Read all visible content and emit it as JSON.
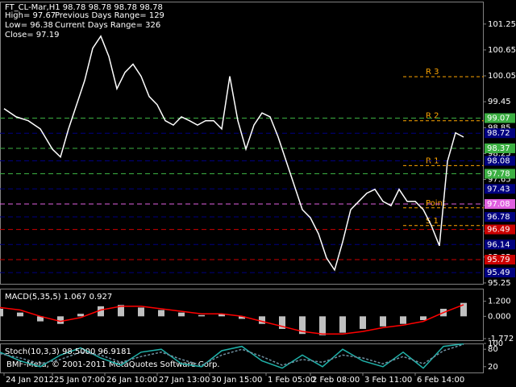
{
  "chart_data": [
    {
      "type": "line",
      "title": "FT_CL-Mar,H1  98.78 98.78 98.78 98.78",
      "info": [
        "High= 97.67",
        "Previous Days Range= 129",
        "Low= 96.38",
        "Current Days Range= 326",
        "Close= 97.19"
      ],
      "x": [
        5,
        20,
        35,
        50,
        65,
        75,
        85,
        95,
        105,
        115,
        125,
        135,
        145,
        155,
        165,
        175,
        185,
        195,
        205,
        215,
        225,
        235,
        245,
        255,
        265,
        275,
        285,
        295,
        305,
        315,
        325,
        335,
        345,
        355,
        365,
        375,
        385,
        395,
        405,
        415,
        425,
        435,
        445,
        455,
        465,
        475,
        485,
        495,
        505,
        515,
        525,
        535,
        545,
        555,
        565,
        575
      ],
      "series": [
        {
          "color": "#ffffff",
          "values": [
            99.29,
            99.1,
            99.01,
            98.82,
            98.35,
            98.17,
            98.82,
            99.38,
            99.94,
            100.69,
            100.97,
            100.5,
            99.75,
            100.13,
            100.32,
            100.04,
            99.57,
            99.38,
            99.01,
            98.91,
            99.1,
            99.01,
            98.91,
            99.01,
            99.01,
            98.82,
            100.04,
            99.01,
            98.35,
            98.91,
            99.19,
            99.1,
            98.63,
            98.07,
            97.51,
            96.95,
            96.76,
            96.39,
            95.83,
            95.55,
            96.2,
            96.95,
            97.14,
            97.33,
            97.42,
            97.14,
            97.04,
            97.42,
            97.14,
            97.14,
            96.95,
            96.58,
            96.11,
            98.07,
            98.73,
            98.63
          ]
        }
      ],
      "levels": [
        {
          "label": "R 3",
          "value": 100.03,
          "color": "#ffa500"
        },
        {
          "label": "R 2",
          "value": 99.01,
          "color": "#ffa500"
        },
        {
          "label": "R 1",
          "value": 97.97,
          "color": "#ffa500"
        },
        {
          "label": "Point",
          "value": 96.99,
          "color": "#ffa500"
        },
        {
          "label": "S 1",
          "value": 96.58,
          "color": "#ffa500"
        }
      ],
      "price_labels": [
        {
          "value": 99.07,
          "color": "#3cb043"
        },
        {
          "value": 98.72,
          "color": "#000080"
        },
        {
          "value": 98.37,
          "color": "#3cb043"
        },
        {
          "value": 98.08,
          "color": "#000080"
        },
        {
          "value": 97.78,
          "color": "#3cb043"
        },
        {
          "value": 97.43,
          "color": "#000080"
        },
        {
          "value": 97.08,
          "color": "#e060e0"
        },
        {
          "value": 96.78,
          "color": "#000080"
        },
        {
          "value": 96.49,
          "color": "#cc0000"
        },
        {
          "value": 96.14,
          "color": "#000080"
        },
        {
          "value": 95.79,
          "color": "#cc0000"
        },
        {
          "value": 95.49,
          "color": "#000080"
        }
      ],
      "xlim": [
        0,
        600
      ],
      "xticks": [
        {
          "value": 5,
          "label": "24 Jan 2012"
        },
        {
          "value": 65,
          "label": "25 Jan 07:00"
        },
        {
          "value": 130,
          "label": "26 Jan 10:00"
        },
        {
          "value": 195,
          "label": "27 Jan 13:00"
        },
        {
          "value": 260,
          "label": "30 Jan 15:00"
        },
        {
          "value": 330,
          "label": "1 Feb 05:00"
        },
        {
          "value": 385,
          "label": "2 Feb 08:00"
        },
        {
          "value": 450,
          "label": "3 Feb 11:00"
        },
        {
          "value": 515,
          "label": "6 Feb 14:00"
        }
      ],
      "ylim": [
        95.23,
        101.77
      ],
      "yticks": [
        101.25,
        100.65,
        100.05,
        99.45,
        98.85,
        98.25,
        97.65,
        97.05,
        96.45,
        95.85,
        95.25
      ]
    },
    {
      "type": "bar",
      "title": "MACD(5,35,5) 1.067 0.927",
      "x": [
        0,
        25,
        50,
        75,
        100,
        125,
        150,
        175,
        200,
        225,
        250,
        275,
        300,
        325,
        350,
        375,
        400,
        425,
        450,
        475,
        500,
        525,
        550,
        575
      ],
      "series": [
        {
          "color": "#c0c0c0",
          "values": [
            0.6,
            0.3,
            -0.4,
            -0.6,
            0.2,
            0.8,
            0.9,
            0.7,
            0.5,
            0.3,
            0.1,
            0.2,
            -0.2,
            -0.6,
            -1.0,
            -1.4,
            -1.5,
            -1.3,
            -1.0,
            -0.8,
            -0.6,
            -0.3,
            0.6,
            1.067
          ]
        },
        {
          "type": "line",
          "color": "#ff0000",
          "values": [
            0.7,
            0.5,
            0.0,
            -0.4,
            -0.1,
            0.5,
            0.8,
            0.8,
            0.6,
            0.4,
            0.2,
            0.2,
            0.0,
            -0.4,
            -0.8,
            -1.2,
            -1.4,
            -1.4,
            -1.2,
            -0.9,
            -0.7,
            -0.4,
            0.3,
            0.927
          ]
        }
      ],
      "xlim": [
        0,
        600
      ],
      "ylim": [
        -1.9,
        2.2
      ],
      "yticks": [
        {
          "value": 1.2,
          "label": "1.200"
        },
        {
          "value": 0,
          "label": "0.000"
        },
        -1.772
      ]
    },
    {
      "type": "line",
      "title": "Stoch(10,3,3) 98.5000 96.9181",
      "x": [
        0,
        25,
        50,
        75,
        100,
        125,
        150,
        175,
        200,
        225,
        250,
        275,
        300,
        325,
        350,
        375,
        400,
        425,
        450,
        475,
        500,
        525,
        550,
        575
      ],
      "series": [
        {
          "color": "#20b2aa",
          "values": [
            70,
            40,
            20,
            60,
            85,
            50,
            25,
            70,
            80,
            30,
            20,
            75,
            90,
            40,
            15,
            60,
            20,
            80,
            40,
            20,
            70,
            15,
            90,
            98.5
          ]
        },
        {
          "color": "#6f8fa0",
          "dash": true,
          "values": [
            65,
            50,
            30,
            45,
            70,
            60,
            35,
            55,
            70,
            45,
            25,
            60,
            80,
            55,
            25,
            45,
            35,
            60,
            50,
            30,
            55,
            30,
            75,
            96.9181
          ]
        }
      ],
      "xlim": [
        0,
        600
      ],
      "ylim": [
        0,
        100
      ],
      "yticks": [
        100,
        80,
        20
      ]
    }
  ],
  "footer": "BMF-Meta, © 2001-2011 MetaQuotes Software Corp."
}
